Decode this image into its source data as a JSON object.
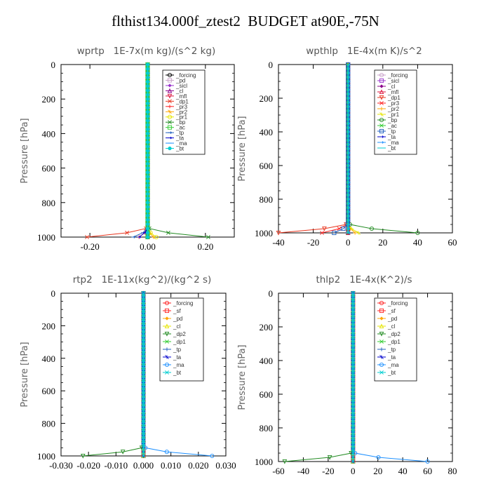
{
  "title": "flthist134.000f_ztest2  BUDGET at90E,-75N",
  "chart_data": [
    {
      "type": "line",
      "title": "wprtp   1E-7x(m kg)/(s^2 kg)",
      "ylabel": "Pressure [hPa]",
      "xlim": [
        -0.3,
        0.3
      ],
      "ylim": [
        1000,
        0
      ],
      "xticks": [
        -0.2,
        0.0,
        0.2
      ],
      "xtick_labels": [
        "-0.20",
        "0.00",
        "0.20"
      ],
      "yticks": [
        0,
        200,
        400,
        600,
        800,
        1000
      ],
      "ytick_labels": [
        "0",
        "200",
        "400",
        "600",
        "800",
        "1000"
      ],
      "legend": "top-right",
      "series": [
        {
          "name": "_forcing",
          "color": "#000000",
          "surface_value": 0.0
        },
        {
          "name": "_pd",
          "color": "#c8a2c8",
          "surface_value": 0.0
        },
        {
          "name": "_sicl",
          "color": "#9932cc",
          "surface_value": 0.0
        },
        {
          "name": "_cl",
          "color": "#8b008b",
          "surface_value": 0.0
        },
        {
          "name": "_mfl",
          "color": "#dc143c",
          "surface_value": 0.0
        },
        {
          "name": "_dp1",
          "color": "#e8351e",
          "surface_value": -0.21
        },
        {
          "name": "_pr3",
          "color": "#ff2222",
          "surface_value": -0.03
        },
        {
          "name": "_pr2",
          "color": "#ffa500",
          "surface_value": 0.02
        },
        {
          "name": "_pr1",
          "color": "#e6e600",
          "surface_value": 0.03
        },
        {
          "name": "_bp",
          "color": "#228b22",
          "surface_value": 0.21
        },
        {
          "name": "_ac",
          "color": "#32cd32",
          "surface_value": 0.0
        },
        {
          "name": "_tp",
          "color": "#1f5fbf",
          "surface_value": -0.05
        },
        {
          "name": "_ta",
          "color": "#0000cd",
          "surface_value": -0.03
        },
        {
          "name": "_ma",
          "color": "#1e90ff",
          "surface_value": 0.0
        },
        {
          "name": "_bt",
          "color": "#00ced1",
          "surface_value": 0.0
        }
      ]
    },
    {
      "type": "line",
      "title": "wpthlp   1E-4x(m K)/s^2",
      "ylabel": "Pressure [hPa]",
      "xlim": [
        -40,
        60
      ],
      "ylim": [
        1000,
        0
      ],
      "xticks": [
        -40,
        -20,
        0,
        20,
        40,
        60
      ],
      "xtick_labels": [
        "-40",
        "-20",
        "0",
        "20",
        "40",
        "60"
      ],
      "yticks": [
        0,
        200,
        400,
        600,
        800,
        1000
      ],
      "ytick_labels": [
        "0",
        "200",
        "400",
        "600",
        "800",
        "1000"
      ],
      "legend": "top-right",
      "series": [
        {
          "name": "_forcing",
          "color": "#c8a2c8",
          "surface_value": 0.0
        },
        {
          "name": "_sicl",
          "color": "#9932cc",
          "surface_value": 0.0
        },
        {
          "name": "_cl",
          "color": "#8b008b",
          "surface_value": 0.0
        },
        {
          "name": "_mfl",
          "color": "#dc143c",
          "surface_value": 0.0
        },
        {
          "name": "_dp1",
          "color": "#e8351e",
          "surface_value": -40
        },
        {
          "name": "_pr3",
          "color": "#ff2222",
          "surface_value": -15
        },
        {
          "name": "_pr2",
          "color": "#ffa500",
          "surface_value": 4
        },
        {
          "name": "_pr1",
          "color": "#e6e600",
          "surface_value": 6
        },
        {
          "name": "_bp",
          "color": "#228b22",
          "surface_value": 40
        },
        {
          "name": "_ac",
          "color": "#32cd32",
          "surface_value": 0.0
        },
        {
          "name": "_tp",
          "color": "#1f5fbf",
          "surface_value": -8
        },
        {
          "name": "_ta",
          "color": "#0000cd",
          "surface_value": 0.0
        },
        {
          "name": "_ma",
          "color": "#1e90ff",
          "surface_value": 0.0
        },
        {
          "name": "_bt",
          "color": "#00ced1",
          "surface_value": 0.0
        }
      ]
    },
    {
      "type": "line",
      "title": "rtp2   1E-11x(kg^2)/(kg^2 s)",
      "ylabel": "Pressure [hPa]",
      "xlim": [
        -0.03,
        0.03
      ],
      "ylim": [
        1000,
        0
      ],
      "xticks": [
        -0.03,
        -0.02,
        -0.01,
        0.0,
        0.01,
        0.02,
        0.03
      ],
      "xtick_labels": [
        "-0.030",
        "-0.020",
        "-0.010",
        "0.000",
        "0.010",
        "0.020",
        "0.030"
      ],
      "yticks": [
        0,
        200,
        400,
        600,
        800,
        1000
      ],
      "ytick_labels": [
        "0",
        "200",
        "400",
        "600",
        "800",
        "1000"
      ],
      "legend": "top-right",
      "series": [
        {
          "name": "_forcing",
          "color": "#ff2222",
          "surface_value": 0.0
        },
        {
          "name": "_sf",
          "color": "#ff2222",
          "surface_value": 0.0
        },
        {
          "name": "_pd",
          "color": "#ffa500",
          "surface_value": 0.0
        },
        {
          "name": "_cl",
          "color": "#e6e600",
          "surface_value": 0.0
        },
        {
          "name": "_dp2",
          "color": "#228b22",
          "surface_value": -0.022
        },
        {
          "name": "_dp1",
          "color": "#32cd32",
          "surface_value": 0.0
        },
        {
          "name": "_tp",
          "color": "#1f5fbf",
          "surface_value": 0.0
        },
        {
          "name": "_ta",
          "color": "#0000cd",
          "surface_value": 0.0
        },
        {
          "name": "_ma",
          "color": "#1e90ff",
          "surface_value": 0.025
        },
        {
          "name": "_bt",
          "color": "#00ced1",
          "surface_value": 0.0
        }
      ]
    },
    {
      "type": "line",
      "title": "thlp2   1E-4x(K^2)/s",
      "ylabel": "Pressure [hPa]",
      "xlim": [
        -60,
        80
      ],
      "ylim": [
        1000,
        0
      ],
      "xticks": [
        -60,
        -40,
        -20,
        0,
        20,
        40,
        60,
        80
      ],
      "xtick_labels": [
        "-60",
        "-40",
        "-20",
        "0",
        "20",
        "40",
        "60",
        "80"
      ],
      "yticks": [
        0,
        200,
        400,
        600,
        800,
        1000
      ],
      "ytick_labels": [
        "0",
        "200",
        "400",
        "600",
        "800",
        "1000"
      ],
      "legend": "top-right",
      "series": [
        {
          "name": "_forcing",
          "color": "#ff2222",
          "surface_value": 0.0
        },
        {
          "name": "_sf",
          "color": "#ff2222",
          "surface_value": 0.0
        },
        {
          "name": "_pd",
          "color": "#ffa500",
          "surface_value": 0.0
        },
        {
          "name": "_cl",
          "color": "#e6e600",
          "surface_value": 0.0
        },
        {
          "name": "_dp2",
          "color": "#228b22",
          "surface_value": -55
        },
        {
          "name": "_dp1",
          "color": "#32cd32",
          "surface_value": 0.0
        },
        {
          "name": "_tp",
          "color": "#1f5fbf",
          "surface_value": 0.0
        },
        {
          "name": "_ta",
          "color": "#0000cd",
          "surface_value": 0.0
        },
        {
          "name": "_ma",
          "color": "#1e90ff",
          "surface_value": 60
        },
        {
          "name": "_bt",
          "color": "#00ced1",
          "surface_value": 0.0
        }
      ]
    }
  ]
}
